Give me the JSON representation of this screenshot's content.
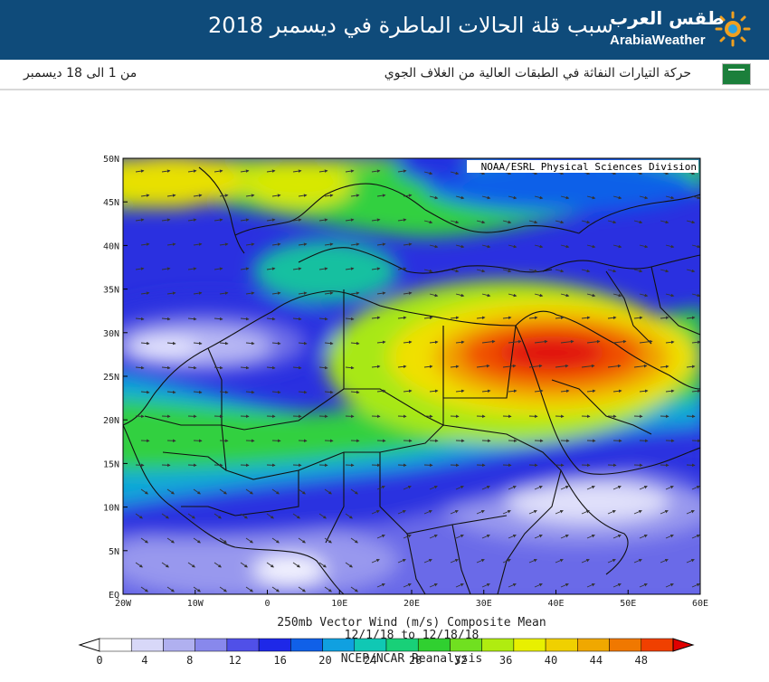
{
  "header": {
    "title": "سبب قلة الحالات الماطرة في ديسمبر 2018",
    "logo_arabic": "طقس العرب",
    "logo_english": "ArabiaWeather",
    "bg_color": "#0f4b7a"
  },
  "subbar": {
    "description": "حركة التيارات النفاثة في الطبقات العالية من الغلاف الجوي",
    "date_range": "من 1 الى 18 ديسمبر",
    "flag_icon": "saudi-flag-icon"
  },
  "map": {
    "credit": "NOAA/ESRL Physical Sciences Division",
    "title_line1": "250mb Vector Wind (m/s) Composite Mean",
    "title_line2": "12/1/18 to 12/18/18",
    "source": "NCEP/NCAR Reanalysis",
    "lat_labels": [
      "50N",
      "45N",
      "40N",
      "35N",
      "30N",
      "25N",
      "20N",
      "15N",
      "10N",
      "5N",
      "EQ"
    ],
    "lon_labels": [
      "20W",
      "10W",
      "0",
      "10E",
      "20E",
      "30E",
      "40E",
      "50E",
      "60E"
    ],
    "colorbar": {
      "tick_labels": [
        "0",
        "4",
        "8",
        "12",
        "16",
        "20",
        "24",
        "28",
        "32",
        "36",
        "40",
        "44",
        "48"
      ],
      "colors": [
        "#ffffff",
        "#d8d8f8",
        "#b0b0f0",
        "#8888ec",
        "#5050e8",
        "#1e28e8",
        "#1060e8",
        "#10a0e0",
        "#10c8b4",
        "#18d078",
        "#30d030",
        "#70e020",
        "#b0ec10",
        "#e8f000",
        "#f0d000",
        "#f0a800",
        "#f07800",
        "#f04000",
        "#e00000"
      ]
    }
  }
}
